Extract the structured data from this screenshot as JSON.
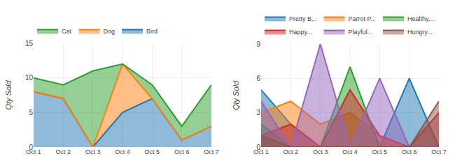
{
  "chart_data": [
    {
      "type": "area",
      "stacked": true,
      "ylabel": "Qty Sold",
      "categories": [
        "Oct 1",
        "Oct 2",
        "Oct 3",
        "Oct 4",
        "Oct 5",
        "Oct 6",
        "Oct 7"
      ],
      "series": [
        {
          "name": "Bird",
          "values": [
            8,
            7,
            0,
            5,
            7,
            1,
            3
          ]
        },
        {
          "name": "Dog",
          "values": [
            0,
            0,
            0,
            7,
            0,
            0,
            0
          ]
        },
        {
          "name": "Cat",
          "values": [
            2,
            2,
            11,
            0,
            2,
            2,
            6
          ]
        }
      ],
      "ylim": [
        0,
        15
      ],
      "yticks": [
        0,
        5,
        10,
        15
      ],
      "grid": true,
      "legend": "upper left"
    },
    {
      "type": "area",
      "stacked": false,
      "ylabel": "Qty Sold",
      "categories": [
        "Oct 1",
        "Oct 2",
        "Oct 3",
        "Oct 4",
        "Oct 5",
        "Oct 6",
        "Oct 7"
      ],
      "series": [
        {
          "name": "Pretty B...",
          "values": [
            5,
            2,
            0,
            0,
            0,
            6,
            0
          ]
        },
        {
          "name": "Parrot P...",
          "values": [
            3,
            4,
            2,
            3,
            1,
            0,
            0
          ]
        },
        {
          "name": "Healthy...",
          "values": [
            2,
            0,
            0,
            7,
            0,
            0,
            0
          ]
        },
        {
          "name": "Happy...",
          "values": [
            1,
            2,
            0,
            5,
            1,
            0,
            3
          ]
        },
        {
          "name": "Playful...",
          "values": [
            4,
            0,
            9,
            0,
            6,
            0,
            0
          ]
        },
        {
          "name": "Hungry...",
          "values": [
            1,
            0,
            0,
            0,
            0,
            0,
            4
          ]
        }
      ],
      "ylim": [
        0,
        9
      ],
      "yticks": [
        0,
        3,
        6,
        9
      ],
      "grid": true,
      "legend": "upper left"
    }
  ]
}
